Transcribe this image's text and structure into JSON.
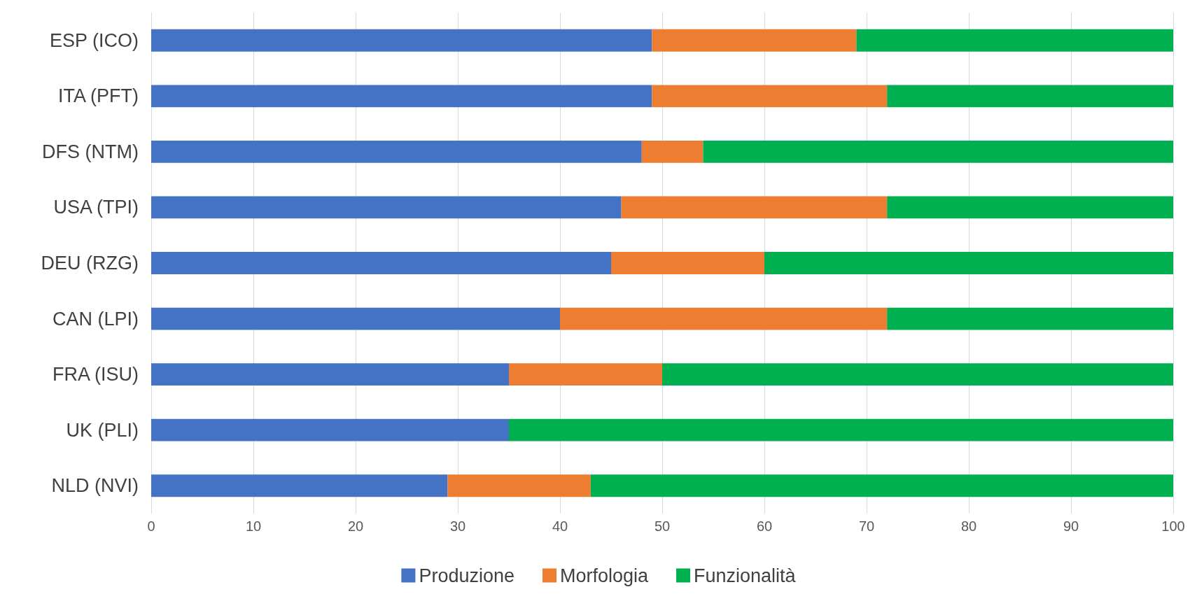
{
  "chart_data": {
    "type": "bar",
    "orientation": "horizontal",
    "stacked": true,
    "categories": [
      "ESP (ICO)",
      "ITA (PFT)",
      "DFS (NTM)",
      "USA (TPI)",
      "DEU (RZG)",
      "CAN (LPI)",
      "FRA (ISU)",
      "UK (PLI)",
      "NLD (NVI)"
    ],
    "series": [
      {
        "name": "Produzione",
        "color": "#4472c4",
        "values": [
          49,
          49,
          48,
          46,
          45,
          40,
          35,
          35,
          29
        ]
      },
      {
        "name": "Morfologia",
        "color": "#ed7d31",
        "values": [
          20,
          23,
          6,
          26,
          15,
          32,
          15,
          0,
          14
        ]
      },
      {
        "name": "Funzionalità",
        "color": "#00b050",
        "values": [
          31,
          28,
          46,
          28,
          40,
          28,
          50,
          65,
          57
        ]
      }
    ],
    "xlim": [
      0,
      100
    ],
    "xticks": [
      0,
      10,
      20,
      30,
      40,
      50,
      60,
      70,
      80,
      90,
      100
    ],
    "grid": "x",
    "legend": "bottom"
  }
}
